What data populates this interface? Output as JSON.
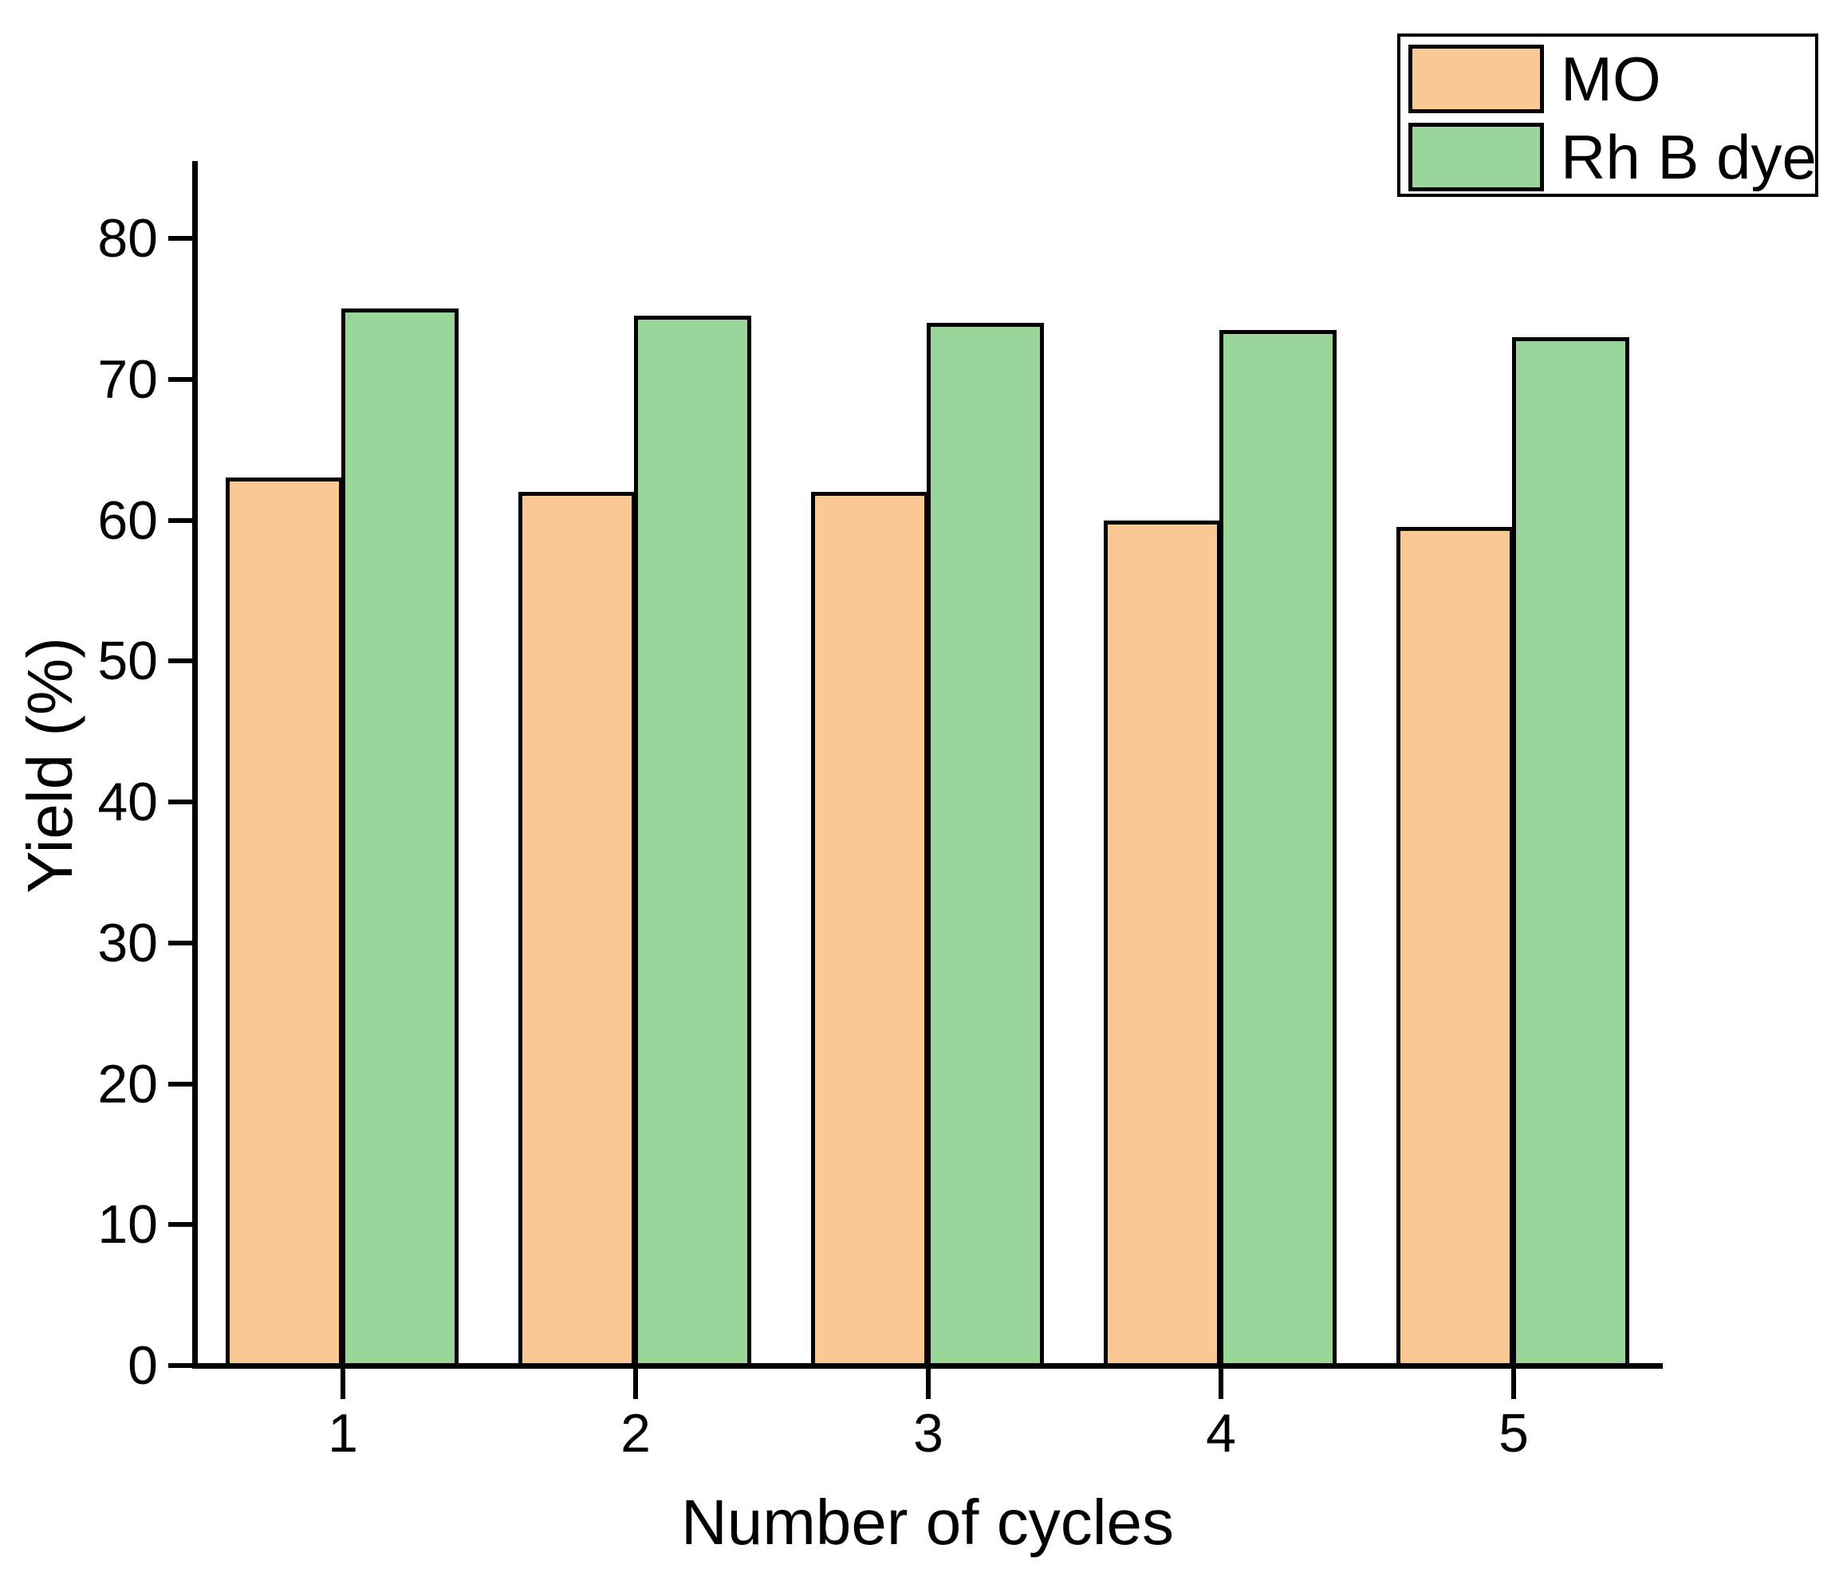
{
  "chart_data": {
    "type": "bar",
    "categories": [
      "1",
      "2",
      "3",
      "4",
      "5"
    ],
    "series": [
      {
        "name": "MO",
        "color": "#FBC894",
        "values": [
          63,
          62,
          62,
          60,
          59.5
        ]
      },
      {
        "name": "Rh B dye",
        "color": "#9AD59A",
        "values": [
          75,
          74.5,
          74,
          73.5,
          73
        ]
      }
    ],
    "title": "",
    "xlabel": "Number of cycles",
    "ylabel": "Yield (%)",
    "ylim": [
      0,
      85.5
    ],
    "yticks": [
      0,
      10,
      20,
      30,
      40,
      50,
      60,
      70,
      80
    ],
    "xticklabels": [
      "1",
      "2",
      "3",
      "4",
      "5"
    ],
    "grid": false,
    "legend_position": "top-right",
    "bar_edge_color": "#000000",
    "axis_color": "#000000"
  }
}
